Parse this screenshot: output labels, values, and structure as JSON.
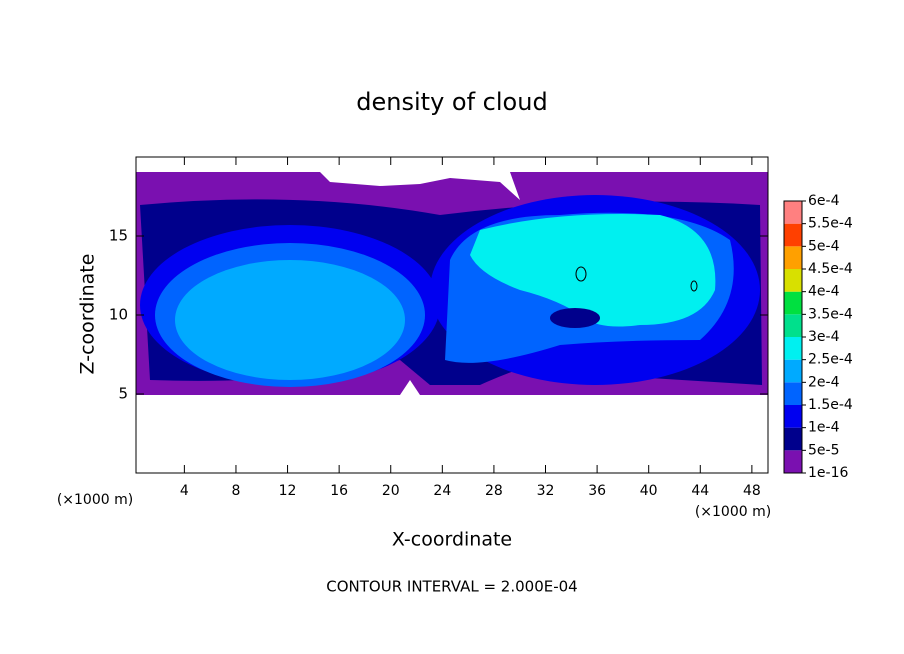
{
  "chart_data": {
    "type": "contour",
    "title": "density of cloud",
    "x_label": "X-coordinate",
    "y_label": "Z-coordinate",
    "x_unit_label": "(×1000 m)",
    "x_unit_label_right": "(×1000 m)",
    "footer": "CONTOUR INTERVAL = 2.000E-04",
    "xlim": [
      0.25,
      49.25
    ],
    "ylim": [
      0,
      20
    ],
    "xticks": [
      4,
      8,
      12,
      16,
      20,
      24,
      28,
      32,
      36,
      40,
      44,
      48
    ],
    "yticks": [
      5,
      10,
      15
    ],
    "colorbar": {
      "levels": [
        {
          "value": 1e-16,
          "label": "1e-16"
        },
        {
          "value": 5e-05,
          "label": "5e-5"
        },
        {
          "value": 0.0001,
          "label": "1e-4"
        },
        {
          "value": 0.00015,
          "label": "1.5e-4"
        },
        {
          "value": 0.0002,
          "label": "2e-4"
        },
        {
          "value": 0.00025,
          "label": "2.5e-4"
        },
        {
          "value": 0.0003,
          "label": "3e-4"
        },
        {
          "value": 0.00035,
          "label": "3.5e-4"
        },
        {
          "value": 0.0004,
          "label": "4e-4"
        },
        {
          "value": 0.00045,
          "label": "4.5e-4"
        },
        {
          "value": 0.0005,
          "label": "5e-4"
        },
        {
          "value": 0.00055,
          "label": "5.5e-4"
        },
        {
          "value": 0.0006,
          "label": "6e-4"
        }
      ],
      "colors": [
        "#7a10b0",
        "#00008c",
        "#0000f0",
        "#0064ff",
        "#00aaff",
        "#00f0f0",
        "#00e08c",
        "#00e040",
        "#20c020",
        "#60d020",
        "#d8e000",
        "#ffa000",
        "#ff4000",
        "#ff2020",
        "#ff8080"
      ]
    }
  }
}
